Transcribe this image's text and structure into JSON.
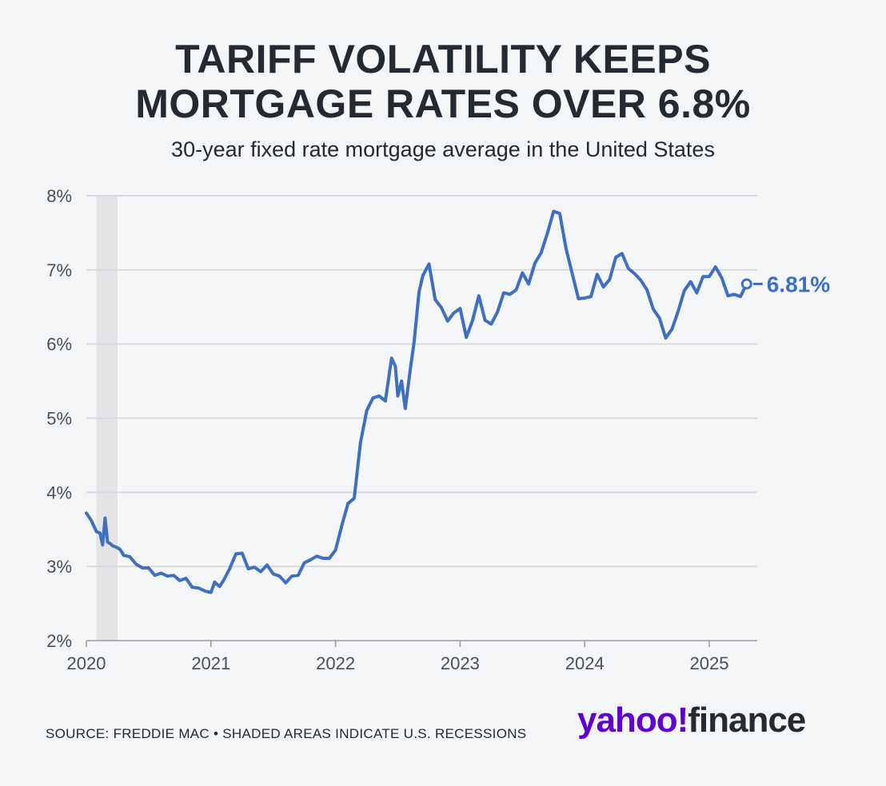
{
  "title_line1": "TARIFF VOLATILITY KEEPS",
  "title_line2": "MORTGAGE RATES OVER 6.8%",
  "subtitle": "30-year fixed rate mortgage average in the United States",
  "source": "SOURCE: FREDDIE MAC • SHADED AREAS INDICATE U.S. RECESSIONS",
  "logo": {
    "yahoo": "yahoo!",
    "finance": "finance"
  },
  "colors": {
    "line": "#3f6fbf",
    "grid": "#d9dadd",
    "recession": "#e4e4e6",
    "logo_purple": "#6001d2",
    "text": "#232a31"
  },
  "chart_data": {
    "type": "line",
    "title": "TARIFF VOLATILITY KEEPS MORTGAGE RATES OVER 6.8%",
    "subtitle": "30-year fixed rate mortgage average in the United States",
    "xlabel": "",
    "ylabel": "",
    "xlim": [
      2020.0,
      2025.4
    ],
    "ylim": [
      2,
      8
    ],
    "y_ticks": [
      2,
      3,
      4,
      5,
      6,
      7,
      8
    ],
    "y_tick_labels": [
      "2%",
      "3%",
      "4%",
      "5%",
      "6%",
      "7%",
      "8%"
    ],
    "x_ticks": [
      2020,
      2021,
      2022,
      2023,
      2024,
      2025
    ],
    "x_tick_labels": [
      "2020",
      "2021",
      "2022",
      "2023",
      "2024",
      "2025"
    ],
    "grid": "horizontal",
    "recession_shading": [
      [
        2020.08,
        2020.25
      ]
    ],
    "end_label": "6.81%",
    "series": [
      {
        "x": [
          2020.0,
          2020.04,
          2020.08,
          2020.11,
          2020.13,
          2020.15,
          2020.17,
          2020.19,
          2020.21,
          2020.24,
          2020.27,
          2020.3,
          2020.35,
          2020.4,
          2020.45,
          2020.5,
          2020.55,
          2020.6,
          2020.65,
          2020.7,
          2020.75,
          2020.8,
          2020.85,
          2020.9,
          2020.95,
          2021.0,
          2021.03,
          2021.07,
          2021.1,
          2021.15,
          2021.2,
          2021.25,
          2021.3,
          2021.35,
          2021.4,
          2021.45,
          2021.5,
          2021.55,
          2021.6,
          2021.65,
          2021.7,
          2021.75,
          2021.8,
          2021.85,
          2021.9,
          2021.95,
          2022.0,
          2022.05,
          2022.1,
          2022.15,
          2022.2,
          2022.25,
          2022.3,
          2022.35,
          2022.4,
          2022.45,
          2022.48,
          2022.5,
          2022.53,
          2022.56,
          2022.6,
          2022.63,
          2022.67,
          2022.7,
          2022.75,
          2022.8,
          2022.85,
          2022.9,
          2022.95,
          2023.0,
          2023.05,
          2023.1,
          2023.15,
          2023.2,
          2023.25,
          2023.3,
          2023.35,
          2023.4,
          2023.45,
          2023.5,
          2023.55,
          2023.6,
          2023.65,
          2023.7,
          2023.75,
          2023.8,
          2023.85,
          2023.9,
          2023.95,
          2024.0,
          2024.05,
          2024.1,
          2024.15,
          2024.2,
          2024.25,
          2024.3,
          2024.35,
          2024.4,
          2024.45,
          2024.5,
          2024.55,
          2024.6,
          2024.65,
          2024.7,
          2024.75,
          2024.8,
          2024.85,
          2024.9,
          2024.95,
          2025.0,
          2025.05,
          2025.1,
          2025.15,
          2025.2,
          2025.25,
          2025.3
        ],
        "y": [
          3.72,
          3.62,
          3.47,
          3.45,
          3.29,
          3.65,
          3.33,
          3.31,
          3.28,
          3.26,
          3.23,
          3.15,
          3.13,
          3.03,
          2.98,
          2.98,
          2.88,
          2.91,
          2.87,
          2.88,
          2.81,
          2.84,
          2.72,
          2.71,
          2.67,
          2.65,
          2.79,
          2.73,
          2.81,
          2.97,
          3.17,
          3.18,
          2.97,
          2.99,
          2.93,
          3.02,
          2.9,
          2.87,
          2.78,
          2.87,
          2.88,
          3.05,
          3.09,
          3.14,
          3.11,
          3.11,
          3.22,
          3.55,
          3.85,
          3.92,
          4.67,
          5.1,
          5.27,
          5.3,
          5.23,
          5.81,
          5.7,
          5.3,
          5.5,
          5.13,
          5.66,
          6.02,
          6.7,
          6.92,
          7.08,
          6.6,
          6.49,
          6.31,
          6.42,
          6.48,
          6.09,
          6.32,
          6.65,
          6.32,
          6.27,
          6.43,
          6.69,
          6.67,
          6.73,
          6.96,
          6.81,
          7.09,
          7.23,
          7.49,
          7.79,
          7.76,
          7.29,
          6.95,
          6.61,
          6.62,
          6.64,
          6.94,
          6.77,
          6.87,
          7.17,
          7.22,
          7.02,
          6.95,
          6.86,
          6.73,
          6.47,
          6.35,
          6.08,
          6.2,
          6.44,
          6.72,
          6.84,
          6.69,
          6.91,
          6.91,
          7.04,
          6.89,
          6.65,
          6.67,
          6.64,
          6.81
        ]
      }
    ]
  }
}
